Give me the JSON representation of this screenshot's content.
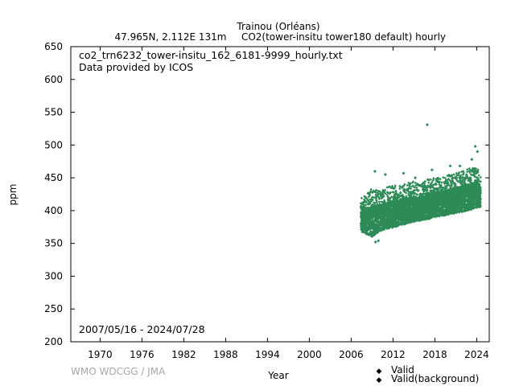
{
  "header": {
    "station": "Trainou (Orléans)",
    "location": "47.965N, 2.112E 131m",
    "parameter": "CO2(tower-insitu tower180 default) hourly"
  },
  "annotations": {
    "filename": "co2_trn6232_tower-insitu_162_6181-9999_hourly.txt",
    "provider": "Data provided by ICOS",
    "date_range": "2007/05/16 - 2024/07/28",
    "watermark": "WMO WDCGG / JMA"
  },
  "legend": {
    "valid": "Valid",
    "valid_background": "Valid(background)",
    "valid_color": "#e8b800",
    "valid_background_color": "#2e8b57"
  },
  "chart_data": {
    "type": "scatter",
    "xlabel": "Year",
    "ylabel": "ppm",
    "xlim": [
      1965.8,
      2025.8
    ],
    "ylim": [
      200,
      650
    ],
    "xticks": [
      1970,
      1976,
      1982,
      1988,
      1994,
      2000,
      2006,
      2012,
      2018,
      2024
    ],
    "yticks": [
      200,
      250,
      300,
      350,
      400,
      450,
      500,
      550,
      600,
      650
    ],
    "grid": false,
    "legend_position": "bottom-right",
    "series": [
      {
        "name": "Valid(background)",
        "color": "#2e8b57",
        "envelope": {
          "years": [
            2007.4,
            2008.0,
            2009.0,
            2010.0,
            2011.0,
            2012.0,
            2013.0,
            2014.0,
            2015.0,
            2016.0,
            2017.0,
            2018.0,
            2019.0,
            2020.0,
            2021.0,
            2022.0,
            2023.0,
            2024.0,
            2024.57
          ],
          "min": [
            368,
            365,
            360,
            368,
            372,
            374,
            377,
            380,
            383,
            385,
            387,
            390,
            392,
            394,
            396,
            398,
            401,
            404,
            405
          ],
          "max": [
            418,
            425,
            435,
            430,
            435,
            438,
            440,
            442,
            445,
            440,
            448,
            450,
            452,
            455,
            458,
            460,
            465,
            468,
            455
          ]
        },
        "outliers": [
          {
            "x": 2009.5,
            "y": 352
          },
          {
            "x": 2009.9,
            "y": 354
          },
          {
            "x": 2009.4,
            "y": 460
          },
          {
            "x": 2010.9,
            "y": 455
          },
          {
            "x": 2013.5,
            "y": 457
          },
          {
            "x": 2015.2,
            "y": 450
          },
          {
            "x": 2016.9,
            "y": 531
          },
          {
            "x": 2017.6,
            "y": 462
          },
          {
            "x": 2020.2,
            "y": 468
          },
          {
            "x": 2021.6,
            "y": 468
          },
          {
            "x": 2023.8,
            "y": 498
          },
          {
            "x": 2024.1,
            "y": 490
          },
          {
            "x": 2023.3,
            "y": 478
          }
        ]
      }
    ]
  }
}
